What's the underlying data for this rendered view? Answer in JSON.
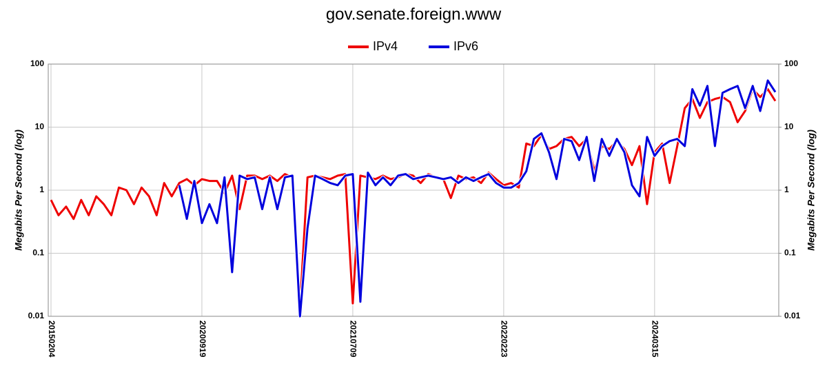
{
  "chart_data": {
    "type": "line",
    "title": "gov.senate.foreign.www",
    "y_label": "Megabits Per Second (log)",
    "log_scale": true,
    "grid": true,
    "legend": "top",
    "ylim": [
      0.01,
      100
    ],
    "yticks": [
      0.01,
      0.1,
      1,
      10,
      100
    ],
    "y2lim": [
      0.01,
      100
    ],
    "y2ticks": [
      0.01,
      0.1,
      1,
      10,
      100
    ],
    "categories": [
      "20150204",
      null,
      null,
      null,
      null,
      null,
      null,
      null,
      null,
      null,
      null,
      null,
      null,
      null,
      null,
      null,
      null,
      null,
      null,
      null,
      "20200919",
      null,
      null,
      null,
      null,
      null,
      null,
      null,
      null,
      null,
      null,
      null,
      null,
      null,
      null,
      null,
      null,
      null,
      null,
      null,
      "20210709",
      null,
      null,
      null,
      null,
      null,
      null,
      null,
      null,
      null,
      null,
      null,
      null,
      null,
      null,
      null,
      null,
      null,
      null,
      null,
      "20220223",
      null,
      null,
      null,
      null,
      null,
      null,
      null,
      null,
      null,
      null,
      null,
      null,
      null,
      null,
      null,
      null,
      null,
      null,
      null,
      "20240315",
      null,
      null,
      null,
      null,
      null,
      null,
      null,
      null,
      null,
      null,
      null,
      null,
      null,
      null,
      null,
      null
    ],
    "series": [
      {
        "name": "IPv4",
        "color": "#ee0000",
        "values": [
          0.7,
          0.4,
          0.55,
          0.35,
          0.7,
          0.4,
          0.8,
          0.6,
          0.4,
          1.1,
          1.0,
          0.6,
          1.1,
          0.8,
          0.4,
          1.3,
          0.8,
          1.3,
          1.5,
          1.2,
          1.5,
          1.4,
          1.4,
          0.9,
          1.7,
          0.5,
          1.7,
          1.7,
          1.5,
          1.7,
          1.4,
          1.8,
          1.6,
          0.014,
          1.6,
          1.7,
          1.6,
          1.5,
          1.7,
          1.8,
          0.016,
          1.7,
          1.6,
          1.5,
          1.7,
          1.5,
          1.6,
          1.8,
          1.7,
          1.3,
          1.8,
          1.6,
          1.5,
          0.75,
          1.7,
          1.5,
          1.6,
          1.3,
          1.9,
          1.5,
          1.2,
          1.3,
          1.1,
          5.5,
          5.0,
          7.5,
          4.5,
          5.0,
          6.5,
          7.0,
          5.0,
          6.5,
          2.0,
          5.0,
          4.5,
          6.0,
          4.5,
          2.5,
          5.0,
          0.6,
          4.0,
          5.5,
          1.3,
          5.0,
          20,
          28,
          14,
          25,
          28,
          30,
          25,
          12,
          18,
          40,
          30,
          40,
          26
        ]
      },
      {
        "name": "IPv6",
        "color": "#0000dd",
        "values": [
          null,
          null,
          null,
          null,
          null,
          null,
          null,
          null,
          null,
          null,
          null,
          null,
          null,
          null,
          null,
          null,
          null,
          1.2,
          0.35,
          1.4,
          0.3,
          0.6,
          0.3,
          1.6,
          0.05,
          1.7,
          1.5,
          1.6,
          0.5,
          1.6,
          0.5,
          1.6,
          1.7,
          0.01,
          0.25,
          1.7,
          1.5,
          1.3,
          1.2,
          1.7,
          1.8,
          0.017,
          1.9,
          1.2,
          1.6,
          1.2,
          1.7,
          1.8,
          1.5,
          1.6,
          1.7,
          1.6,
          1.5,
          1.6,
          1.3,
          1.6,
          1.4,
          1.6,
          1.8,
          1.3,
          1.1,
          1.1,
          1.3,
          2.0,
          6.5,
          8.0,
          4.0,
          1.5,
          6.5,
          6.0,
          3.0,
          7.0,
          1.4,
          6.5,
          3.5,
          6.5,
          4.0,
          1.2,
          0.8,
          7.0,
          3.5,
          5.0,
          6.0,
          6.5,
          5.0,
          40,
          22,
          45,
          5.0,
          35,
          40,
          45,
          20,
          45,
          18,
          55,
          36
        ]
      }
    ]
  }
}
